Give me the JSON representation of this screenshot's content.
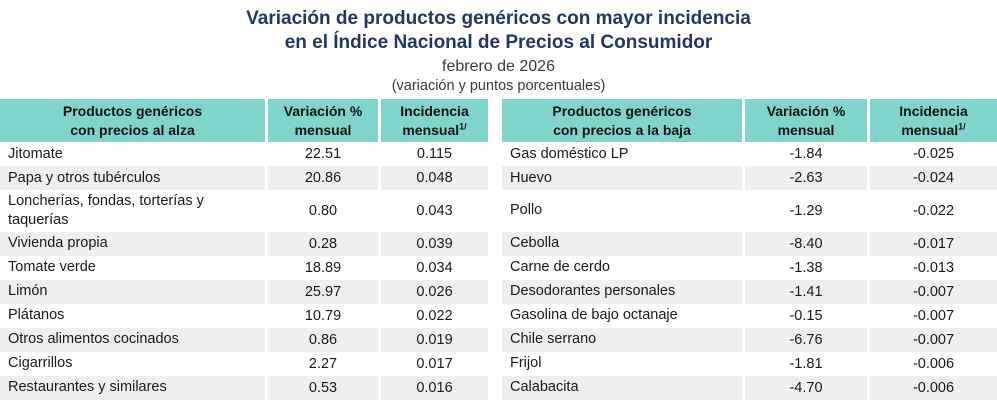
{
  "title": {
    "line1": "Variación de productos genéricos con mayor incidencia",
    "line2": "en el Índice Nacional de Precios al Consumidor",
    "date": "febrero de 2026",
    "units": "(variación y puntos porcentuales)"
  },
  "colors": {
    "title_navy": "#1f3864",
    "header_teal": "#7fd5cb",
    "row_stripe_gray": "#efefef"
  },
  "table": {
    "left": {
      "header": {
        "product_line1": "Productos genéricos",
        "product_line2": "con precios al alza",
        "variation_line1": "Variación %",
        "variation_line2": "mensual",
        "incidence_line1": "Incidencia",
        "incidence_line2": "mensual",
        "incidence_sup": "1/"
      },
      "rows": [
        {
          "product": "Jitomate",
          "variation": "22.51",
          "incidence": "0.115"
        },
        {
          "product": "Papa y otros tubérculos",
          "variation": "20.86",
          "incidence": "0.048"
        },
        {
          "product": "Loncherías, fondas, torterías y taquerías",
          "variation": "0.80",
          "incidence": "0.043"
        },
        {
          "product": "Vivienda propia",
          "variation": "0.28",
          "incidence": "0.039"
        },
        {
          "product": "Tomate verde",
          "variation": "18.89",
          "incidence": "0.034"
        },
        {
          "product": "Limón",
          "variation": "25.97",
          "incidence": "0.026"
        },
        {
          "product": "Plátanos",
          "variation": "10.79",
          "incidence": "0.022"
        },
        {
          "product": "Otros alimentos cocinados",
          "variation": "0.86",
          "incidence": "0.019"
        },
        {
          "product": "Cigarrillos",
          "variation": "2.27",
          "incidence": "0.017"
        },
        {
          "product": "Restaurantes y similares",
          "variation": "0.53",
          "incidence": "0.016"
        }
      ]
    },
    "right": {
      "header": {
        "product_line1": "Productos genéricos",
        "product_line2": "con precios a la baja",
        "variation_line1": "Variación %",
        "variation_line2": "mensual",
        "incidence_line1": "Incidencia",
        "incidence_line2": "mensual",
        "incidence_sup": "1/"
      },
      "rows": [
        {
          "product": "Gas doméstico LP",
          "variation": "-1.84",
          "incidence": "-0.025"
        },
        {
          "product": "Huevo",
          "variation": "-2.63",
          "incidence": "-0.024"
        },
        {
          "product": "Pollo",
          "variation": "-1.29",
          "incidence": "-0.022"
        },
        {
          "product": "Cebolla",
          "variation": "-8.40",
          "incidence": "-0.017"
        },
        {
          "product": "Carne de cerdo",
          "variation": "-1.38",
          "incidence": "-0.013"
        },
        {
          "product": "Desodorantes personales",
          "variation": "-1.41",
          "incidence": "-0.007"
        },
        {
          "product": "Gasolina de bajo octanaje",
          "variation": "-0.15",
          "incidence": "-0.007"
        },
        {
          "product": "Chile serrano",
          "variation": "-6.76",
          "incidence": "-0.007"
        },
        {
          "product": "Frijol",
          "variation": "-1.81",
          "incidence": "-0.006"
        },
        {
          "product": "Calabacita",
          "variation": "-4.70",
          "incidence": "-0.006"
        }
      ]
    }
  }
}
